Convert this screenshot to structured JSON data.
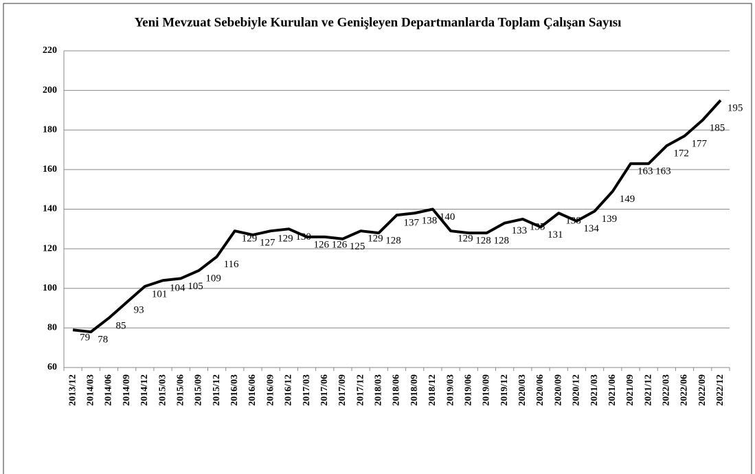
{
  "chart_data": {
    "type": "line",
    "title": "Yeni Mevzuat Sebebiyle Kurulan ve Genişleyen Departmanlarda Toplam Çalışan Sayısı",
    "categories": [
      "2013/12",
      "2014/03",
      "2014/06",
      "2014/09",
      "2014/12",
      "2015/03",
      "2015/06",
      "2015/09",
      "2015/12",
      "2016/03",
      "2016/06",
      "2016/09",
      "2016/12",
      "2017/03",
      "2017/06",
      "2017/09",
      "2017/12",
      "2018/03",
      "2018/06",
      "2018/09",
      "2018/12",
      "2019/03",
      "2019/06",
      "2019/09",
      "2019/12",
      "2020/03",
      "2020/06",
      "2020/09",
      "2020/12",
      "2021/03",
      "2021/06",
      "2021/09",
      "2021/12",
      "2022/03",
      "2022/06",
      "2022/09",
      "2022/12"
    ],
    "series": [
      {
        "name": "Toplam Çalışan Sayısı",
        "color": "#000000",
        "values": [
          79,
          78,
          85,
          93,
          101,
          104,
          105,
          109,
          116,
          129,
          127,
          129,
          130,
          126,
          126,
          125,
          129,
          128,
          137,
          138,
          140,
          129,
          128,
          128,
          133,
          135,
          131,
          138,
          134,
          139,
          149,
          163,
          163,
          172,
          177,
          185,
          195
        ]
      }
    ],
    "ylim": [
      60,
      220
    ],
    "yticks": [
      60,
      80,
      100,
      120,
      140,
      160,
      180,
      200,
      220
    ],
    "grid": true
  }
}
